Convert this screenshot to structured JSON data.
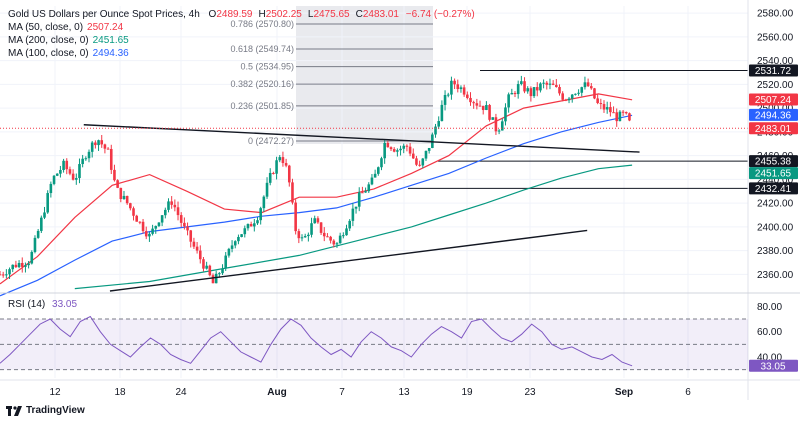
{
  "header": {
    "title": "Gold US Dollars per Ounce Spot Prices, 4h",
    "ohlc": [
      {
        "k": "O",
        "v": "2489.59"
      },
      {
        "k": "H",
        "v": "2502.25"
      },
      {
        "k": "L",
        "v": "2475.65"
      },
      {
        "k": "C",
        "v": "2483.01"
      }
    ],
    "change": "−6.74 (−0.27%)",
    "ma": [
      {
        "label": "MA (50, close, 0)",
        "value": "2507.24",
        "color": "#f23645"
      },
      {
        "label": "MA (200, close, 0)",
        "value": "2451.65",
        "color": "#089981"
      },
      {
        "label": "MA (100, close, 0)",
        "value": "2494.36",
        "color": "#2962ff"
      }
    ]
  },
  "rsi_label": "RSI (14)",
  "rsi_value": "33.05",
  "brand": "TradingView",
  "colors": {
    "up": "#089981",
    "down": "#f23645",
    "ma50": "#f23645",
    "ma100": "#2962ff",
    "ma200": "#089981",
    "rsi": "#7e57c2"
  },
  "chart_data": {
    "type": "candlestick",
    "y_ticks": [
      "2580.00",
      "2560.00",
      "2540.00",
      "2520.00",
      "2500.00",
      "2480.00",
      "2460.00",
      "2440.00",
      "2420.00",
      "2400.00",
      "2380.00",
      "2360.00"
    ],
    "ylim": [
      2346,
      2586
    ],
    "x_ticks": [
      "12",
      "18",
      "24",
      "Aug",
      "7",
      "13",
      "19",
      "23",
      "Sep",
      "6"
    ],
    "price_labels": [
      {
        "text": "2531.72",
        "value": 2531.72,
        "bg": "#131722"
      },
      {
        "text": "2507.24",
        "value": 2507.24,
        "bg": "#f23645"
      },
      {
        "text": "2494.36",
        "value": 2494.36,
        "bg": "#2962ff"
      },
      {
        "text": "2483.01",
        "value": 2483.01,
        "bg": "#f23645"
      },
      {
        "text": "2455.38",
        "value": 2455.38,
        "bg": "#131722"
      },
      {
        "text": "2451.65",
        "value": 2451.65,
        "bg": "#089981"
      },
      {
        "text": "2432.41",
        "value": 2432.41,
        "bg": "#131722"
      }
    ],
    "fib_levels": [
      {
        "label": "0.786 (2570.80)",
        "value": 2570.8
      },
      {
        "label": "0.618 (2549.74)",
        "value": 2549.74
      },
      {
        "label": "0.5 (2534.95)",
        "value": 2534.95
      },
      {
        "label": "0.382 (2520.16)",
        "value": 2520.16
      },
      {
        "label": "0.236 (2501.85)",
        "value": 2501.85
      },
      {
        "label": "0 (2472.27)",
        "value": 2472.27
      }
    ],
    "horizontal_lines": [
      2531.72,
      2455.38,
      2432.41
    ],
    "trendlines": [
      {
        "x": [
          0.112,
          0.855
        ],
        "y": [
          2486,
          2463
        ]
      },
      {
        "x": [
          0.147,
          0.785
        ],
        "y": [
          2346,
          2397
        ]
      }
    ],
    "price_path": [
      [
        0.0,
        2360
      ],
      [
        0.02,
        2368
      ],
      [
        0.04,
        2372
      ],
      [
        0.055,
        2405
      ],
      [
        0.07,
        2440
      ],
      [
        0.085,
        2452
      ],
      [
        0.1,
        2440
      ],
      [
        0.115,
        2462
      ],
      [
        0.13,
        2475
      ],
      [
        0.145,
        2462
      ],
      [
        0.155,
        2432
      ],
      [
        0.17,
        2420
      ],
      [
        0.185,
        2405
      ],
      [
        0.2,
        2392
      ],
      [
        0.215,
        2410
      ],
      [
        0.23,
        2422
      ],
      [
        0.245,
        2400
      ],
      [
        0.26,
        2382
      ],
      [
        0.275,
        2365
      ],
      [
        0.285,
        2352
      ],
      [
        0.3,
        2370
      ],
      [
        0.315,
        2392
      ],
      [
        0.33,
        2398
      ],
      [
        0.345,
        2410
      ],
      [
        0.36,
        2440
      ],
      [
        0.375,
        2462
      ],
      [
        0.385,
        2445
      ],
      [
        0.395,
        2398
      ],
      [
        0.405,
        2388
      ],
      [
        0.42,
        2405
      ],
      [
        0.435,
        2392
      ],
      [
        0.45,
        2385
      ],
      [
        0.465,
        2405
      ],
      [
        0.48,
        2425
      ],
      [
        0.5,
        2440
      ],
      [
        0.515,
        2472
      ],
      [
        0.53,
        2465
      ],
      [
        0.545,
        2468
      ],
      [
        0.56,
        2448
      ],
      [
        0.575,
        2470
      ],
      [
        0.59,
        2500
      ],
      [
        0.605,
        2522
      ],
      [
        0.62,
        2515
      ],
      [
        0.635,
        2505
      ],
      [
        0.65,
        2500
      ],
      [
        0.665,
        2480
      ],
      [
        0.68,
        2508
      ],
      [
        0.695,
        2520
      ],
      [
        0.71,
        2512
      ],
      [
        0.725,
        2520
      ],
      [
        0.74,
        2518
      ],
      [
        0.755,
        2508
      ],
      [
        0.77,
        2515
      ],
      [
        0.785,
        2520
      ],
      [
        0.8,
        2502
      ],
      [
        0.815,
        2498
      ],
      [
        0.825,
        2492
      ],
      [
        0.835,
        2495
      ],
      [
        0.845,
        2483
      ]
    ],
    "ma50_path": [
      [
        0.0,
        2352
      ],
      [
        0.05,
        2375
      ],
      [
        0.1,
        2408
      ],
      [
        0.15,
        2435
      ],
      [
        0.2,
        2444
      ],
      [
        0.25,
        2430
      ],
      [
        0.3,
        2415
      ],
      [
        0.35,
        2412
      ],
      [
        0.4,
        2425
      ],
      [
        0.45,
        2425
      ],
      [
        0.5,
        2432
      ],
      [
        0.55,
        2445
      ],
      [
        0.6,
        2460
      ],
      [
        0.65,
        2485
      ],
      [
        0.7,
        2500
      ],
      [
        0.75,
        2506
      ],
      [
        0.8,
        2512
      ],
      [
        0.845,
        2507
      ]
    ],
    "ma100_path": [
      [
        0.0,
        2342
      ],
      [
        0.05,
        2355
      ],
      [
        0.1,
        2372
      ],
      [
        0.15,
        2388
      ],
      [
        0.2,
        2396
      ],
      [
        0.25,
        2400
      ],
      [
        0.3,
        2404
      ],
      [
        0.35,
        2409
      ],
      [
        0.4,
        2412
      ],
      [
        0.45,
        2416
      ],
      [
        0.5,
        2425
      ],
      [
        0.55,
        2435
      ],
      [
        0.6,
        2445
      ],
      [
        0.65,
        2458
      ],
      [
        0.7,
        2470
      ],
      [
        0.75,
        2480
      ],
      [
        0.8,
        2488
      ],
      [
        0.845,
        2494
      ]
    ],
    "ma200_path": [
      [
        0.1,
        2348
      ],
      [
        0.2,
        2354
      ],
      [
        0.3,
        2365
      ],
      [
        0.4,
        2376
      ],
      [
        0.5,
        2392
      ],
      [
        0.55,
        2400
      ],
      [
        0.6,
        2410
      ],
      [
        0.65,
        2420
      ],
      [
        0.7,
        2431
      ],
      [
        0.75,
        2441
      ],
      [
        0.8,
        2449
      ],
      [
        0.845,
        2452
      ]
    ],
    "rsi": {
      "y_ticks": [
        "80.00",
        "60.00",
        "40.00"
      ],
      "ylim": [
        25,
        85
      ],
      "overbought": 70,
      "oversold": 30,
      "middle": 50,
      "values": [
        35,
        42,
        50,
        58,
        66,
        70,
        62,
        56,
        68,
        72,
        60,
        50,
        45,
        40,
        48,
        55,
        50,
        42,
        38,
        35,
        45,
        55,
        60,
        52,
        44,
        40,
        36,
        50,
        62,
        70,
        65,
        55,
        48,
        42,
        46,
        40,
        52,
        60,
        55,
        48,
        45,
        40,
        50,
        58,
        64,
        60,
        55,
        68,
        70,
        62,
        55,
        52,
        58,
        66,
        60,
        50,
        46,
        48,
        44,
        40,
        38,
        42,
        36,
        33.05
      ]
    }
  }
}
